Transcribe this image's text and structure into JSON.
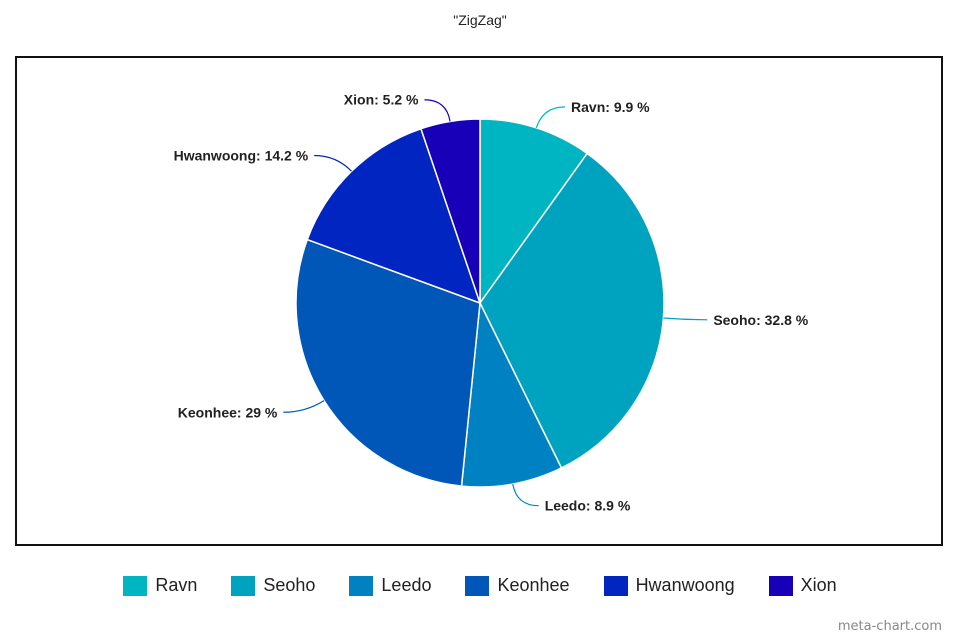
{
  "chart_data": {
    "type": "pie",
    "title": "\"ZigZag\"",
    "slices": [
      {
        "name": "Ravn",
        "value": 9.9,
        "label": "Ravn: 9.9 %",
        "color": "#00b5c2"
      },
      {
        "name": "Seoho",
        "value": 32.8,
        "label": "Seoho: 32.8 %",
        "color": "#00a3bf"
      },
      {
        "name": "Leedo",
        "value": 8.9,
        "label": "Leedo: 8.9 %",
        "color": "#0082c2"
      },
      {
        "name": "Keonhee",
        "value": 29,
        "label": "Keonhee: 29 %",
        "color": "#0057b8"
      },
      {
        "name": "Hwanwoong",
        "value": 14.2,
        "label": "Hwanwoong: 14.2 %",
        "color": "#0025c0"
      },
      {
        "name": "Xion",
        "value": 5.2,
        "label": "Xion: 5.2 %",
        "color": "#1800b8"
      }
    ],
    "legend_position": "bottom"
  },
  "watermark": "meta-chart.com"
}
